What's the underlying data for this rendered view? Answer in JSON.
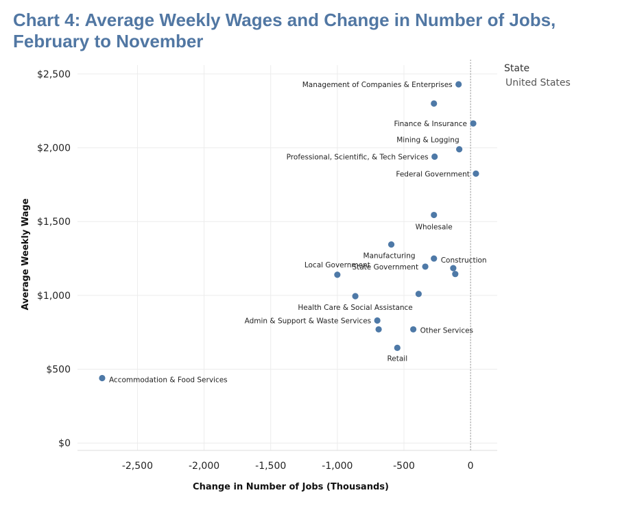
{
  "title_line1": "Chart 4: Average Weekly Wages and Change in Number of Jobs,",
  "title_line2": "February to November",
  "legend": {
    "title": "State",
    "item": "United States"
  },
  "colors": {
    "point": "#4e79a7",
    "title": "#5177a3",
    "grid": "#ececec",
    "reference_line": "#9a9a9a"
  },
  "chart_data": {
    "type": "scatter",
    "xlabel": "Change in Number of Jobs (Thousands)",
    "ylabel": "Average Weekly Wage",
    "xlim": [
      -2950,
      200
    ],
    "ylim": [
      -50,
      2560
    ],
    "xticks": [
      -2500,
      -2000,
      -1500,
      -1000,
      -500,
      0
    ],
    "xtick_labels": [
      "-2,500",
      "-2,000",
      "-1,500",
      "-1,000",
      "-500",
      "0"
    ],
    "yticks": [
      0,
      500,
      1000,
      1500,
      2000,
      2500
    ],
    "ytick_labels": [
      "$0",
      "$500",
      "$1,000",
      "$1,500",
      "$2,000",
      "$2,500"
    ],
    "grid": true,
    "reference_line_x": 0,
    "legend_position": "top-right",
    "points": [
      {
        "label": "Management of Companies & Enterprises",
        "x": -90,
        "y": 2430
      },
      {
        "label": "",
        "x": -275,
        "y": 2300
      },
      {
        "label": "Finance & Insurance",
        "x": 20,
        "y": 2165
      },
      {
        "label": "Mining & Logging",
        "x": -85,
        "y": 1990
      },
      {
        "label": "Professional, Scientific, & Tech Services",
        "x": -270,
        "y": 1940
      },
      {
        "label": "Federal Government",
        "x": 40,
        "y": 1825
      },
      {
        "label": "Wholesale",
        "x": -275,
        "y": 1545
      },
      {
        "label": "Manufacturing",
        "x": -595,
        "y": 1345
      },
      {
        "label": "Construction",
        "x": -275,
        "y": 1250
      },
      {
        "label": "State Government",
        "x": -340,
        "y": 1195
      },
      {
        "label": "",
        "x": -130,
        "y": 1185
      },
      {
        "label": "",
        "x": -115,
        "y": 1145
      },
      {
        "label": "Local Government",
        "x": -1000,
        "y": 1140
      },
      {
        "label": "",
        "x": -390,
        "y": 1010
      },
      {
        "label": "Health Care & Social Assistance",
        "x": -865,
        "y": 995
      },
      {
        "label": "Admin & Support & Waste Services",
        "x": -700,
        "y": 830
      },
      {
        "label": "",
        "x": -690,
        "y": 770
      },
      {
        "label": "Other Services",
        "x": -430,
        "y": 770
      },
      {
        "label": "Retail",
        "x": -550,
        "y": 645
      },
      {
        "label": "Accommodation & Food Services",
        "x": -2765,
        "y": 440
      }
    ]
  }
}
